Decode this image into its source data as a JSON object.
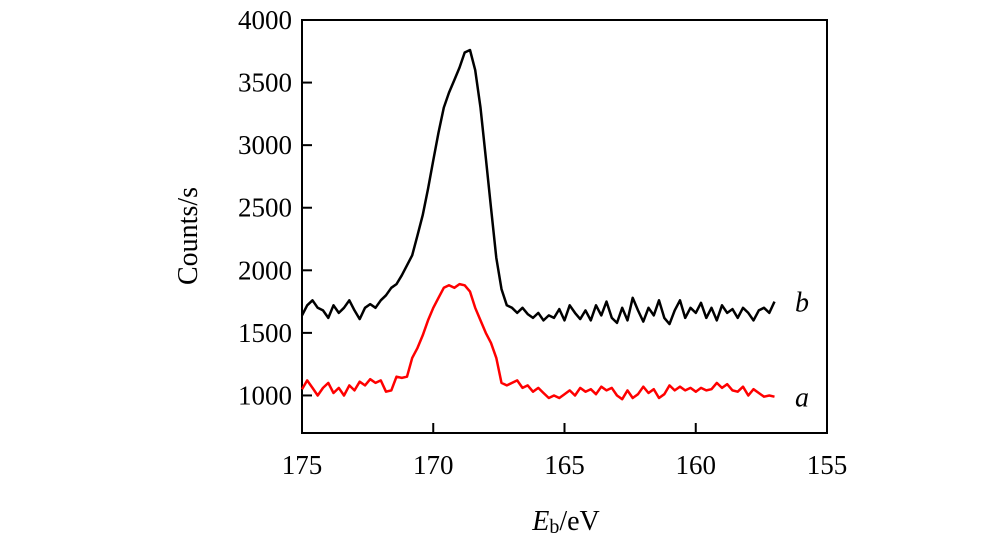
{
  "chart_data": {
    "type": "line",
    "title": "",
    "xlabel": {
      "main": "E",
      "sub": "b",
      "unit": "/eV"
    },
    "ylabel": "Counts/s",
    "xlim": [
      175,
      155
    ],
    "ylim": [
      700,
      4000
    ],
    "x_ticks": [
      175,
      170,
      165,
      160,
      155
    ],
    "y_ticks": [
      1000,
      1500,
      2000,
      2500,
      3000,
      3500,
      4000
    ],
    "grid": false,
    "x_reversed": true,
    "series": [
      {
        "name": "b",
        "color": "#000000",
        "points": [
          [
            175.0,
            1640
          ],
          [
            174.8,
            1720
          ],
          [
            174.6,
            1760
          ],
          [
            174.4,
            1700
          ],
          [
            174.2,
            1680
          ],
          [
            174.0,
            1620
          ],
          [
            173.8,
            1720
          ],
          [
            173.6,
            1660
          ],
          [
            173.4,
            1700
          ],
          [
            173.2,
            1760
          ],
          [
            173.0,
            1680
          ],
          [
            172.8,
            1610
          ],
          [
            172.6,
            1700
          ],
          [
            172.4,
            1730
          ],
          [
            172.2,
            1700
          ],
          [
            172.0,
            1760
          ],
          [
            171.8,
            1800
          ],
          [
            171.6,
            1860
          ],
          [
            171.4,
            1890
          ],
          [
            171.2,
            1960
          ],
          [
            171.0,
            2040
          ],
          [
            170.8,
            2120
          ],
          [
            170.6,
            2280
          ],
          [
            170.4,
            2440
          ],
          [
            170.2,
            2650
          ],
          [
            170.0,
            2880
          ],
          [
            169.8,
            3100
          ],
          [
            169.6,
            3300
          ],
          [
            169.4,
            3420
          ],
          [
            169.2,
            3520
          ],
          [
            169.0,
            3620
          ],
          [
            168.8,
            3740
          ],
          [
            168.6,
            3760
          ],
          [
            168.4,
            3600
          ],
          [
            168.2,
            3300
          ],
          [
            168.0,
            2900
          ],
          [
            167.8,
            2500
          ],
          [
            167.6,
            2100
          ],
          [
            167.4,
            1850
          ],
          [
            167.2,
            1720
          ],
          [
            167.0,
            1700
          ],
          [
            166.8,
            1660
          ],
          [
            166.6,
            1700
          ],
          [
            166.4,
            1650
          ],
          [
            166.2,
            1620
          ],
          [
            166.0,
            1660
          ],
          [
            165.8,
            1600
          ],
          [
            165.6,
            1640
          ],
          [
            165.4,
            1620
          ],
          [
            165.2,
            1690
          ],
          [
            165.0,
            1600
          ],
          [
            164.8,
            1720
          ],
          [
            164.6,
            1660
          ],
          [
            164.4,
            1610
          ],
          [
            164.2,
            1680
          ],
          [
            164.0,
            1600
          ],
          [
            163.8,
            1720
          ],
          [
            163.6,
            1640
          ],
          [
            163.4,
            1750
          ],
          [
            163.2,
            1620
          ],
          [
            163.0,
            1580
          ],
          [
            162.8,
            1700
          ],
          [
            162.6,
            1600
          ],
          [
            162.4,
            1780
          ],
          [
            162.2,
            1680
          ],
          [
            162.0,
            1590
          ],
          [
            161.8,
            1700
          ],
          [
            161.6,
            1640
          ],
          [
            161.4,
            1760
          ],
          [
            161.2,
            1620
          ],
          [
            161.0,
            1570
          ],
          [
            160.8,
            1680
          ],
          [
            160.6,
            1760
          ],
          [
            160.4,
            1620
          ],
          [
            160.2,
            1700
          ],
          [
            160.0,
            1660
          ],
          [
            159.8,
            1740
          ],
          [
            159.6,
            1620
          ],
          [
            159.4,
            1700
          ],
          [
            159.2,
            1600
          ],
          [
            159.0,
            1720
          ],
          [
            158.8,
            1660
          ],
          [
            158.6,
            1690
          ],
          [
            158.4,
            1620
          ],
          [
            158.2,
            1700
          ],
          [
            158.0,
            1660
          ],
          [
            157.8,
            1600
          ],
          [
            157.6,
            1680
          ],
          [
            157.4,
            1700
          ],
          [
            157.2,
            1660
          ],
          [
            157.0,
            1750
          ]
        ]
      },
      {
        "name": "a",
        "color": "#ff0000",
        "points": [
          [
            175.0,
            1050
          ],
          [
            174.8,
            1120
          ],
          [
            174.6,
            1060
          ],
          [
            174.4,
            1000
          ],
          [
            174.2,
            1060
          ],
          [
            174.0,
            1100
          ],
          [
            173.8,
            1020
          ],
          [
            173.6,
            1060
          ],
          [
            173.4,
            1000
          ],
          [
            173.2,
            1080
          ],
          [
            173.0,
            1040
          ],
          [
            172.8,
            1110
          ],
          [
            172.6,
            1080
          ],
          [
            172.4,
            1130
          ],
          [
            172.2,
            1100
          ],
          [
            172.0,
            1120
          ],
          [
            171.8,
            1030
          ],
          [
            171.6,
            1040
          ],
          [
            171.4,
            1150
          ],
          [
            171.2,
            1140
          ],
          [
            171.0,
            1150
          ],
          [
            170.8,
            1300
          ],
          [
            170.6,
            1380
          ],
          [
            170.4,
            1480
          ],
          [
            170.2,
            1600
          ],
          [
            170.0,
            1700
          ],
          [
            169.8,
            1780
          ],
          [
            169.6,
            1860
          ],
          [
            169.4,
            1880
          ],
          [
            169.2,
            1860
          ],
          [
            169.0,
            1890
          ],
          [
            168.8,
            1880
          ],
          [
            168.6,
            1830
          ],
          [
            168.4,
            1700
          ],
          [
            168.2,
            1600
          ],
          [
            168.0,
            1500
          ],
          [
            167.8,
            1420
          ],
          [
            167.6,
            1300
          ],
          [
            167.4,
            1100
          ],
          [
            167.2,
            1080
          ],
          [
            167.0,
            1100
          ],
          [
            166.8,
            1120
          ],
          [
            166.6,
            1060
          ],
          [
            166.4,
            1080
          ],
          [
            166.2,
            1030
          ],
          [
            166.0,
            1060
          ],
          [
            165.8,
            1020
          ],
          [
            165.6,
            980
          ],
          [
            165.4,
            1000
          ],
          [
            165.2,
            980
          ],
          [
            165.0,
            1010
          ],
          [
            164.8,
            1040
          ],
          [
            164.6,
            1000
          ],
          [
            164.4,
            1060
          ],
          [
            164.2,
            1030
          ],
          [
            164.0,
            1050
          ],
          [
            163.8,
            1010
          ],
          [
            163.6,
            1070
          ],
          [
            163.4,
            1040
          ],
          [
            163.2,
            1060
          ],
          [
            163.0,
            1000
          ],
          [
            162.8,
            970
          ],
          [
            162.6,
            1040
          ],
          [
            162.4,
            980
          ],
          [
            162.2,
            1010
          ],
          [
            162.0,
            1070
          ],
          [
            161.8,
            1020
          ],
          [
            161.6,
            1050
          ],
          [
            161.4,
            980
          ],
          [
            161.2,
            1010
          ],
          [
            161.0,
            1080
          ],
          [
            160.8,
            1040
          ],
          [
            160.6,
            1070
          ],
          [
            160.4,
            1040
          ],
          [
            160.2,
            1060
          ],
          [
            160.0,
            1030
          ],
          [
            159.8,
            1060
          ],
          [
            159.6,
            1040
          ],
          [
            159.4,
            1050
          ],
          [
            159.2,
            1100
          ],
          [
            159.0,
            1060
          ],
          [
            158.8,
            1090
          ],
          [
            158.6,
            1040
          ],
          [
            158.4,
            1030
          ],
          [
            158.2,
            1070
          ],
          [
            158.0,
            1000
          ],
          [
            157.8,
            1050
          ],
          [
            157.6,
            1020
          ],
          [
            157.4,
            990
          ],
          [
            157.2,
            1000
          ],
          [
            157.0,
            990
          ]
        ]
      }
    ]
  }
}
